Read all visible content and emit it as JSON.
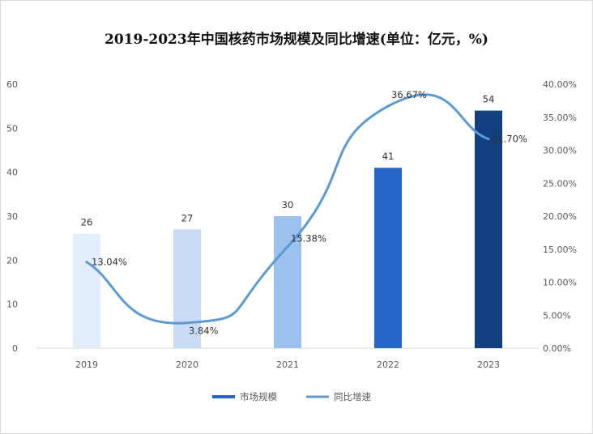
{
  "chart_data": {
    "type": "bar",
    "title": "2019-2023年中国核药市场规模及同比增速(单位：亿元，%)",
    "categories": [
      "2019",
      "2020",
      "2021",
      "2022",
      "2023"
    ],
    "series": [
      {
        "name": "市场规模",
        "type": "bar",
        "axis": "left",
        "values": [
          26,
          27,
          30,
          41,
          54
        ],
        "labels": [
          "26",
          "27",
          "30",
          "41",
          "54"
        ],
        "colors": [
          "#e3eefb",
          "#c9dcf5",
          "#9dc1ee",
          "#2467c9",
          "#123f80"
        ]
      },
      {
        "name": "同比增速",
        "type": "line",
        "axis": "right",
        "smooth": true,
        "values": [
          13.04,
          3.84,
          15.38,
          36.67,
          31.7
        ],
        "labels": [
          "13.04%",
          "3.84%",
          "15.38%",
          "36.67%",
          "31.70%"
        ],
        "color": "#5b9bd5"
      }
    ],
    "y_left": {
      "min": 0,
      "max": 60,
      "ticks": [
        "0",
        "10",
        "20",
        "30",
        "40",
        "50",
        "60"
      ]
    },
    "y_right": {
      "min": 0,
      "max": 40,
      "ticks": [
        "0.00%",
        "5.00%",
        "10.00%",
        "15.00%",
        "20.00%",
        "25.00%",
        "30.00%",
        "35.00%",
        "40.00%"
      ]
    },
    "legend": {
      "position": "bottom",
      "items": [
        "市场规模",
        "同比增速"
      ]
    },
    "grid": false
  }
}
